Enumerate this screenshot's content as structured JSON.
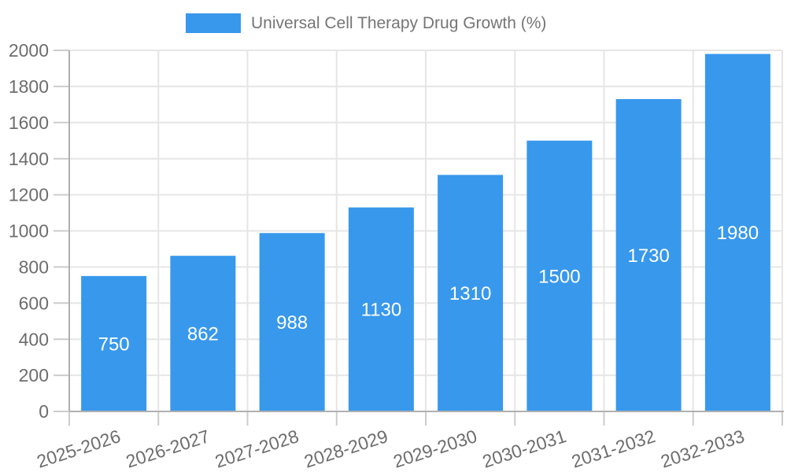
{
  "chart_data": {
    "type": "bar",
    "title": "Universal Cell Therapy Drug Growth (%)",
    "categories": [
      "2025-2026",
      "2026-2027",
      "2027-2028",
      "2028-2029",
      "2029-2030",
      "2030-2031",
      "2031-2032",
      "2032-2033"
    ],
    "values": [
      750,
      862,
      988,
      1130,
      1310,
      1500,
      1730,
      1980
    ],
    "xlabel": "",
    "ylabel": "",
    "ylim": [
      0,
      2000
    ],
    "yticks": [
      0,
      200,
      400,
      600,
      800,
      1000,
      1200,
      1400,
      1600,
      1800,
      2000
    ],
    "grid": "horizontal-and-vertical",
    "legend_position": "top",
    "bar_value_labels": "inside-centered",
    "x_label_rotation_deg": -18
  },
  "colors": {
    "bar": "#3898EC",
    "bar_label_text": "#ffffff",
    "legend_text": "#757575",
    "axis_text": "#6d6d6d",
    "grid_line": "#e6e6e6",
    "axis_line": "#b0b0b0",
    "tick_line": "#cccccc",
    "background": "#ffffff"
  }
}
